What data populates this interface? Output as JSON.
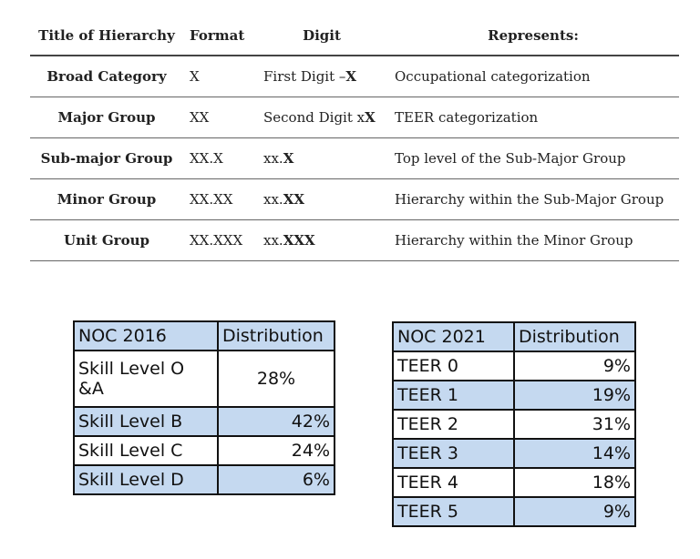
{
  "hierarchy_table": {
    "headers": [
      "Title of Hierarchy",
      "Format",
      "Digit",
      "Represents:"
    ],
    "rows": [
      {
        "title": "Broad Category",
        "format": "X",
        "digit_prefix": "First Digit – ",
        "digit_bold": "X",
        "represents": "Occupational categorization"
      },
      {
        "title": "Major Group",
        "format": "XX",
        "digit_prefix": "Second Digit x",
        "digit_bold": "X",
        "represents": "TEER categorization"
      },
      {
        "title": "Sub-major Group",
        "format": "XX.X",
        "digit_prefix": "xx.",
        "digit_bold": "X",
        "represents": "Top level of the Sub-Major Group"
      },
      {
        "title": "Minor Group",
        "format": "XX.XX",
        "digit_prefix": "xx.",
        "digit_bold": "XX",
        "represents": "Hierarchy within the Sub-Major Group"
      },
      {
        "title": "Unit Group",
        "format": "XX.XXX",
        "digit_prefix": "xx.",
        "digit_bold": "XXX",
        "represents": "Hierarchy within the Minor Group"
      }
    ]
  },
  "noc_2016": {
    "headers": [
      "NOC 2016",
      "Distribution"
    ],
    "rows": [
      {
        "label": "Skill Level O &A",
        "value": "28%"
      },
      {
        "label": "Skill Level B",
        "value": "42%"
      },
      {
        "label": "Skill Level C",
        "value": "24%"
      },
      {
        "label": "Skill Level D",
        "value": "6%"
      }
    ]
  },
  "noc_2021": {
    "headers": [
      "NOC 2021",
      "Distribution"
    ],
    "rows": [
      {
        "label": "TEER 0",
        "value": "9%"
      },
      {
        "label": "TEER 1",
        "value": "19%"
      },
      {
        "label": "TEER 2",
        "value": "31%"
      },
      {
        "label": "TEER 3",
        "value": "14%"
      },
      {
        "label": "TEER 4",
        "value": "18%"
      },
      {
        "label": "TEER 5",
        "value": "9%"
      }
    ]
  },
  "colors": {
    "highlight_fill": "#c5d9f0",
    "border": "#111111"
  }
}
